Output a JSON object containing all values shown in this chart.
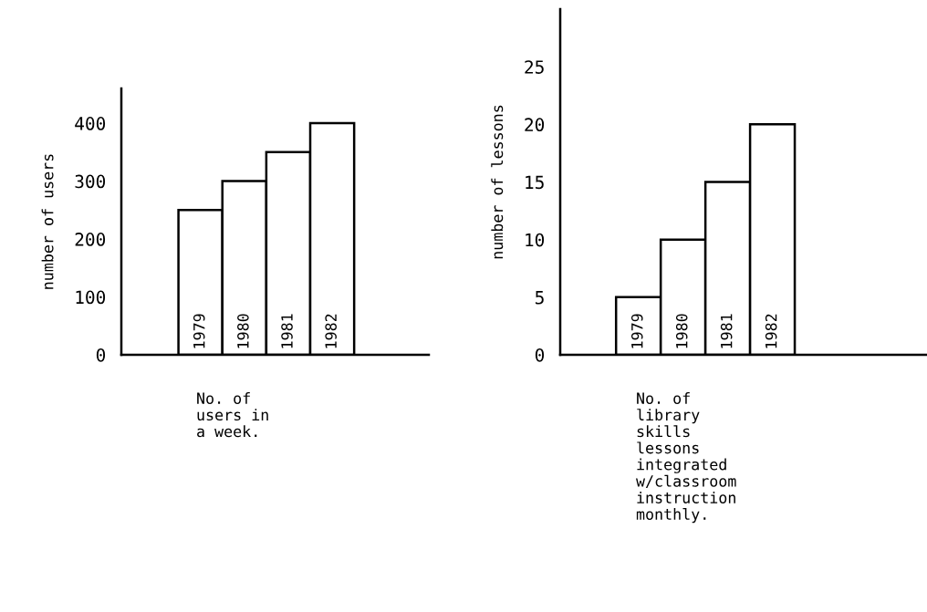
{
  "chart_data": [
    {
      "type": "bar",
      "categories": [
        "1979",
        "1980",
        "1981",
        "1982"
      ],
      "values": [
        250,
        300,
        350,
        400
      ],
      "color": "#ffffff",
      "ylabel": "number of users",
      "xlabel": "No. of\nusers in\na week.",
      "ylim": [
        0,
        460
      ],
      "yticks": [
        0,
        100,
        200,
        300,
        400
      ],
      "grid": false,
      "legend": false
    },
    {
      "type": "bar",
      "categories": [
        "1979",
        "1980",
        "1981",
        "1982"
      ],
      "values": [
        5,
        10,
        15,
        20
      ],
      "color": "#ffffff",
      "ylabel": "number of lessons",
      "xlabel": "No. of\nlibrary\nskills\nlessons\nintegrated\nw/classroom\ninstruction\nmonthly.",
      "ylim": [
        0,
        30
      ],
      "yticks": [
        0,
        5,
        10,
        15,
        20,
        25
      ],
      "grid": false,
      "legend": false
    }
  ]
}
